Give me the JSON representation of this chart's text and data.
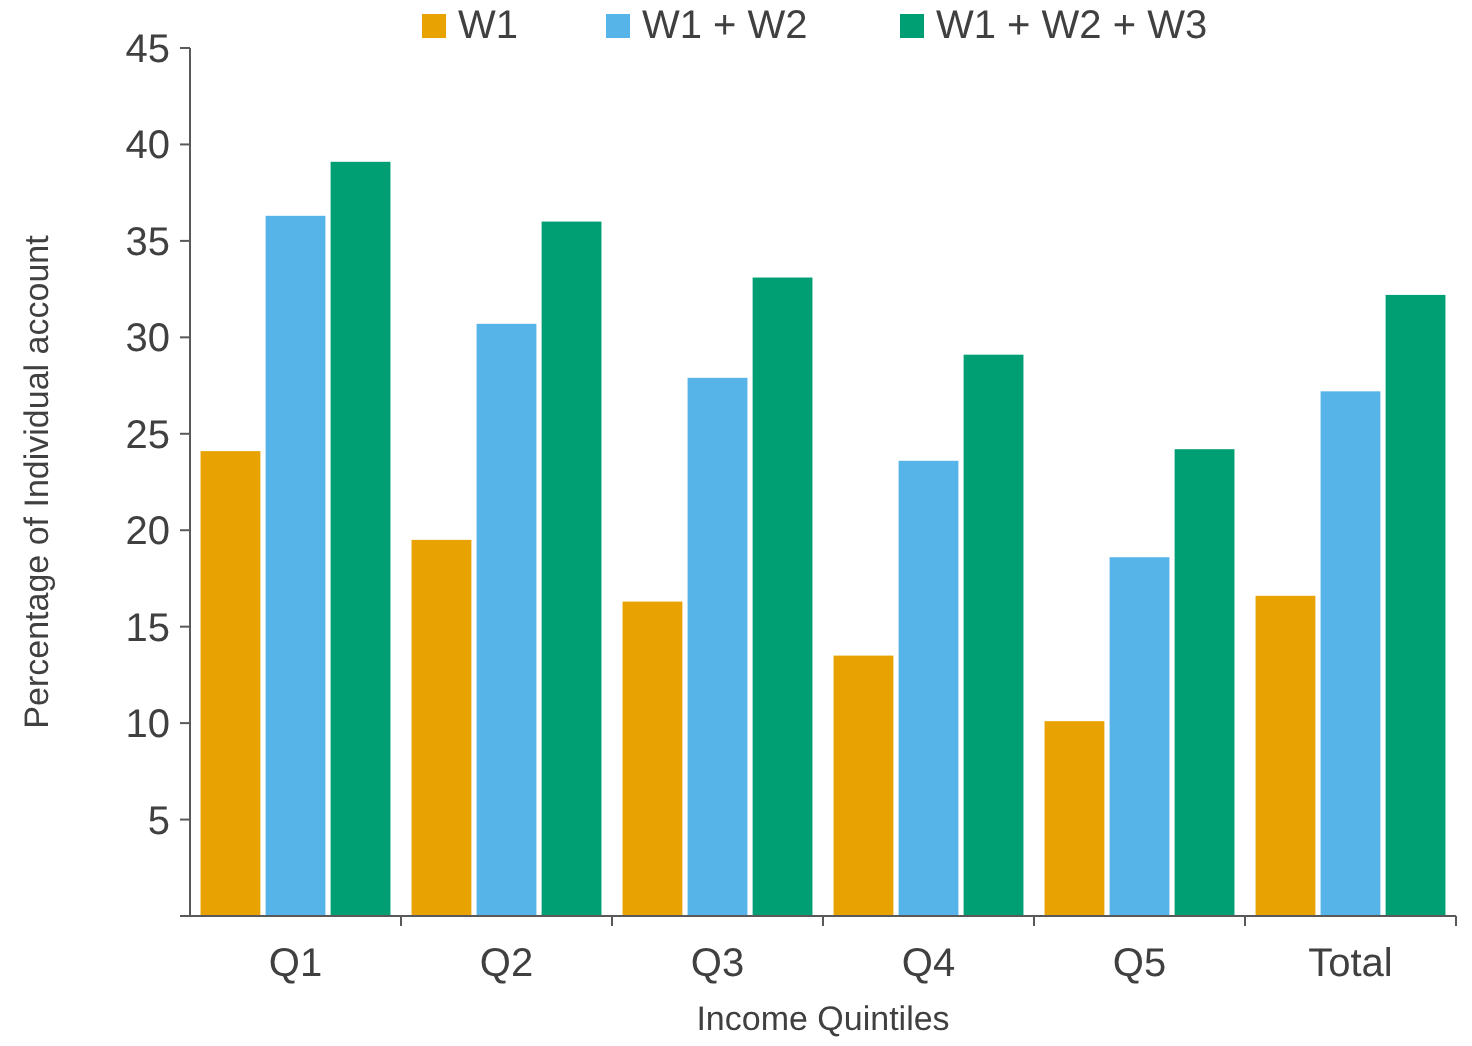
{
  "chart_data": {
    "type": "bar",
    "xlabel": "Income Quintiles",
    "ylabel": "Percentage of Individual account",
    "categories": [
      "Q1",
      "Q2",
      "Q3",
      "Q4",
      "Q5",
      "Total"
    ],
    "series": [
      {
        "name": "W1",
        "color": "#e8a202",
        "values": [
          24.1,
          19.5,
          16.3,
          13.5,
          10.1,
          16.6
        ]
      },
      {
        "name": "W1 + W2",
        "color": "#56b4e9",
        "values": [
          36.3,
          30.7,
          27.9,
          23.6,
          18.6,
          27.2
        ]
      },
      {
        "name": "W1 + W2 + W3",
        "color": "#009e73",
        "values": [
          39.1,
          36.0,
          33.1,
          29.1,
          24.2,
          32.2
        ]
      }
    ],
    "ylim": [
      0,
      45
    ],
    "yticks": [
      {
        "value": 0,
        "label": null
      },
      5,
      10,
      15,
      20,
      25,
      30,
      35,
      40,
      45
    ],
    "grid": false,
    "legend": "top"
  }
}
